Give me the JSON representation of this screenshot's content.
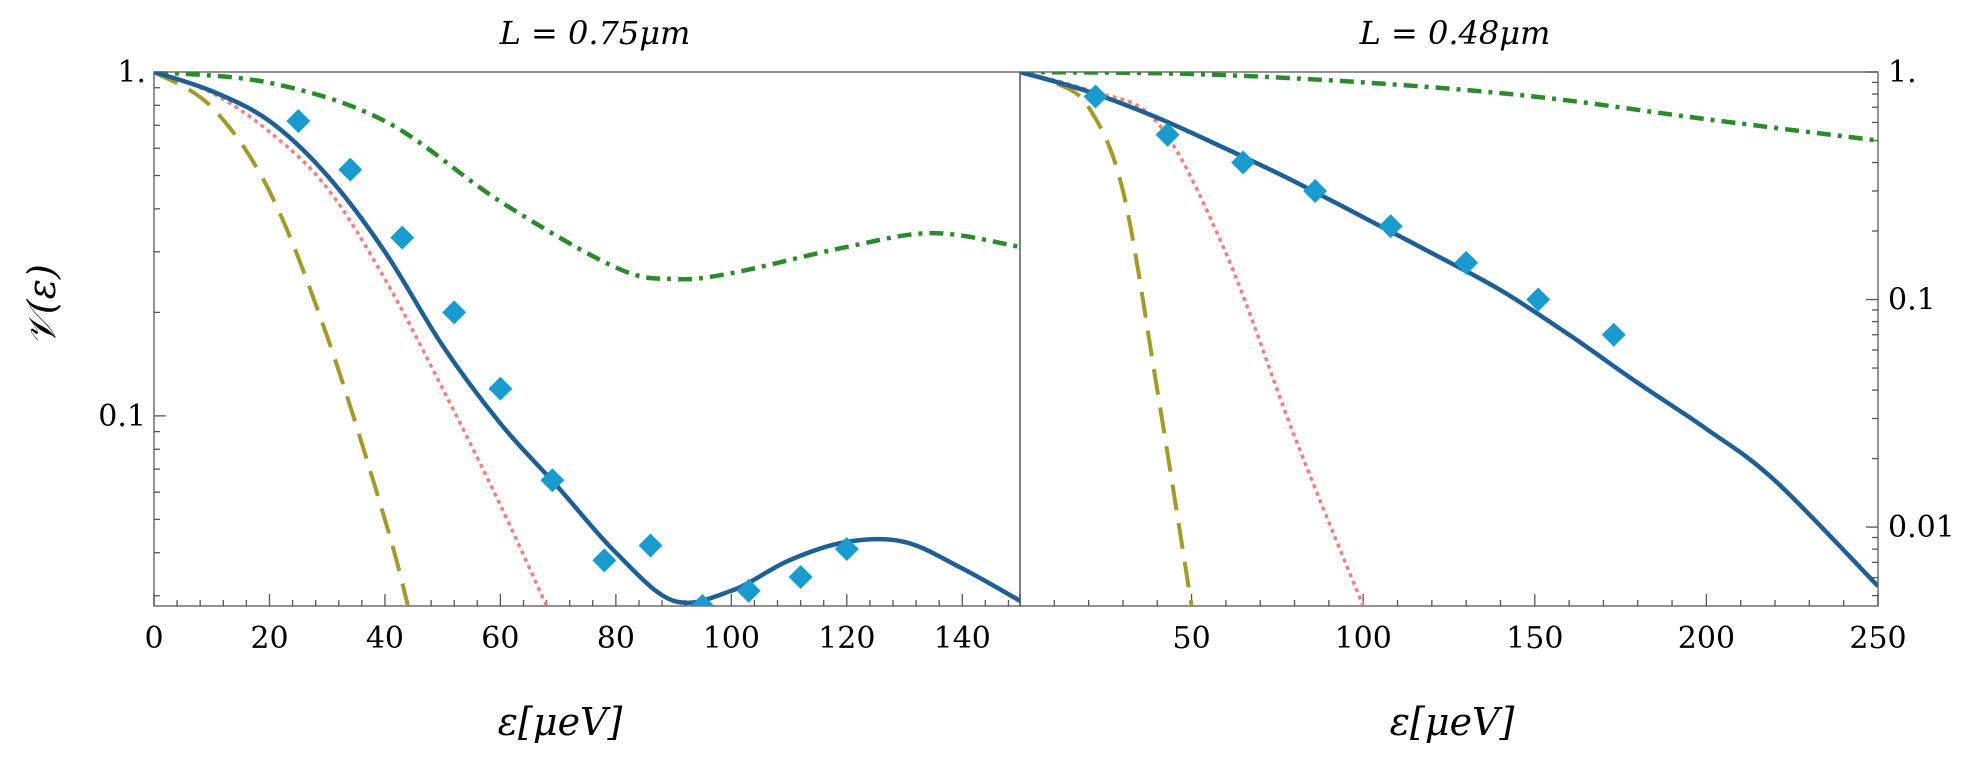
{
  "chart_data": [
    {
      "type": "line",
      "title": "L = 0.75μm",
      "xlabel": "ε[μeV]",
      "ylabel": "𝒱(ε)",
      "xlim": [
        0,
        150
      ],
      "ylim": [
        0.028,
        1.0
      ],
      "yscale": "log",
      "x_ticks": [
        "0",
        "20",
        "40",
        "60",
        "80",
        "100",
        "120",
        "140"
      ],
      "y_ticks": [
        "1.",
        "0.1"
      ],
      "series": [
        {
          "name": "solid",
          "color": "#1f5f95",
          "style": "solid",
          "x": [
            0,
            10,
            20,
            30,
            40,
            50,
            60,
            70,
            80,
            90,
            100,
            110,
            120,
            130,
            140,
            150
          ],
          "y": [
            1.0,
            0.88,
            0.72,
            0.5,
            0.3,
            0.16,
            0.095,
            0.062,
            0.04,
            0.029,
            0.031,
            0.038,
            0.043,
            0.043,
            0.036,
            0.029
          ]
        },
        {
          "name": "dash-dot",
          "color": "#2b8a2b",
          "style": "dashdot",
          "x": [
            0,
            20,
            40,
            60,
            80,
            90,
            100,
            120,
            135,
            150
          ],
          "y": [
            1.0,
            0.93,
            0.72,
            0.42,
            0.27,
            0.25,
            0.26,
            0.31,
            0.34,
            0.31
          ]
        },
        {
          "name": "dotted",
          "color": "#f08080",
          "style": "dotted",
          "x": [
            0,
            10,
            20,
            30,
            40,
            50,
            60,
            68
          ],
          "y": [
            1.0,
            0.87,
            0.67,
            0.46,
            0.25,
            0.12,
            0.055,
            0.028
          ]
        },
        {
          "name": "dashed",
          "color": "#a29a2a",
          "style": "dashed",
          "x": [
            0,
            10,
            20,
            30,
            40,
            44
          ],
          "y": [
            1.0,
            0.79,
            0.45,
            0.17,
            0.05,
            0.028
          ]
        }
      ],
      "markers": {
        "name": "data",
        "color": "#1a9bd0",
        "shape": "diamond",
        "x": [
          25,
          34,
          43,
          52,
          60,
          69,
          78,
          86,
          95,
          103,
          112,
          120
        ],
        "y": [
          0.72,
          0.52,
          0.33,
          0.2,
          0.12,
          0.065,
          0.038,
          0.042,
          0.028,
          0.031,
          0.034,
          0.041
        ]
      }
    },
    {
      "type": "line",
      "title": "L = 0.48μm",
      "xlabel": "ε[μeV]",
      "ylabel": "",
      "xlim": [
        0,
        250
      ],
      "ylim": [
        0.0045,
        1.0
      ],
      "yscale": "log",
      "x_ticks": [
        "50",
        "100",
        "150",
        "200",
        "250"
      ],
      "y_ticks": [
        "1.",
        "0.1",
        "0.01"
      ],
      "series": [
        {
          "name": "solid",
          "color": "#1f5f95",
          "style": "solid",
          "x": [
            0,
            20,
            40,
            60,
            80,
            100,
            120,
            140,
            160,
            180,
            200,
            220,
            250
          ],
          "y": [
            1.0,
            0.82,
            0.63,
            0.46,
            0.33,
            0.23,
            0.16,
            0.11,
            0.07,
            0.043,
            0.027,
            0.016,
            0.0055
          ]
        },
        {
          "name": "dash-dot",
          "color": "#2b8a2b",
          "style": "dashdot",
          "x": [
            0,
            50,
            100,
            150,
            200,
            250
          ],
          "y": [
            1.0,
            0.98,
            0.9,
            0.78,
            0.62,
            0.5
          ]
        },
        {
          "name": "dotted",
          "color": "#f08080",
          "style": "dotted",
          "x": [
            0,
            20,
            40,
            60,
            80,
            100
          ],
          "y": [
            1.0,
            0.83,
            0.6,
            0.16,
            0.025,
            0.0045
          ]
        },
        {
          "name": "dashed",
          "color": "#a29a2a",
          "style": "dashed",
          "x": [
            0,
            10,
            20,
            30,
            40,
            50
          ],
          "y": [
            1.0,
            0.9,
            0.7,
            0.3,
            0.04,
            0.0045
          ]
        }
      ],
      "markers": {
        "name": "data",
        "color": "#1a9bd0",
        "shape": "diamond",
        "x": [
          22,
          43,
          65,
          86,
          108,
          130,
          151,
          173
        ],
        "y": [
          0.78,
          0.53,
          0.4,
          0.3,
          0.21,
          0.145,
          0.1,
          0.07
        ]
      }
    }
  ]
}
